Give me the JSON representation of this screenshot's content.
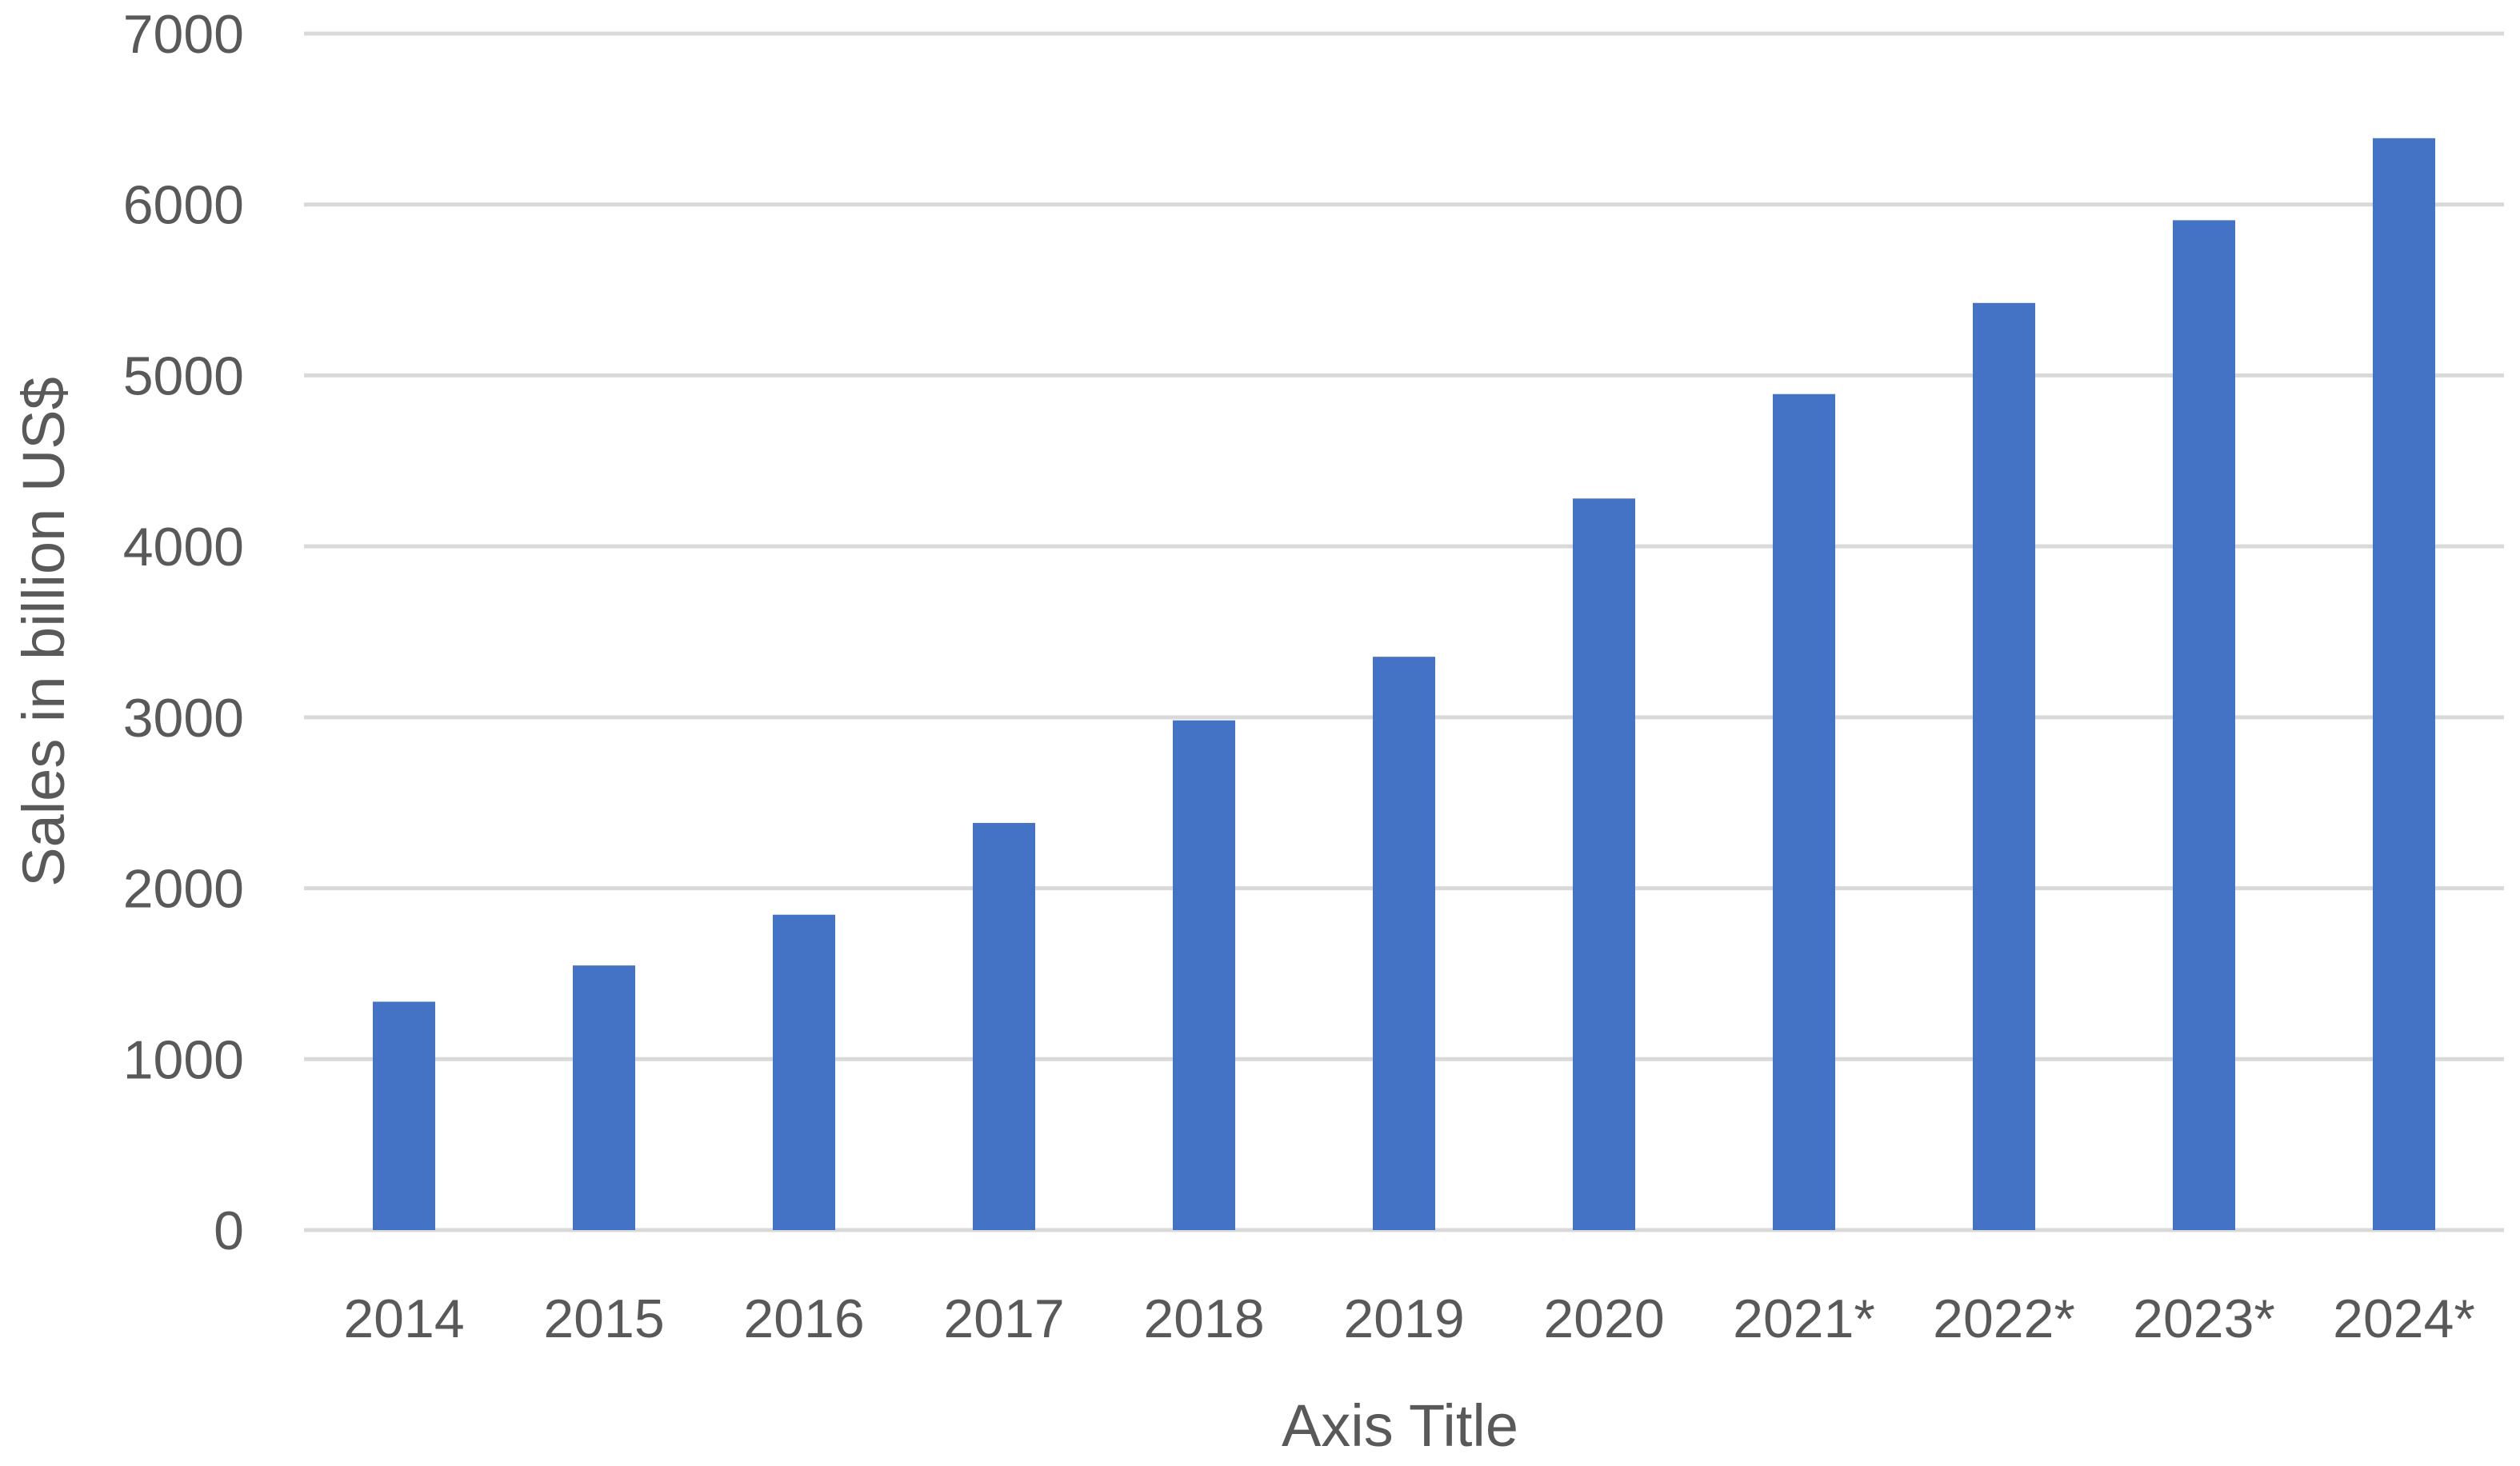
{
  "chart_data": {
    "type": "bar",
    "categories": [
      "2014",
      "2015",
      "2016",
      "2017",
      "2018",
      "2019",
      "2020",
      "2021*",
      "2022*",
      "2023*",
      "2024*"
    ],
    "series": [
      {
        "values": [
          1336,
          1548,
          1845,
          2382,
          2982,
          3354,
          4280,
          4891,
          5424,
          5908,
          6388
        ],
        "color": "#4472c4"
      }
    ],
    "title": "",
    "xlabel": "Axis Title",
    "ylabel": "Sales in billion US$",
    "ylim": [
      0,
      7000
    ],
    "yticks": [
      "0",
      "1000",
      "2000",
      "3000",
      "4000",
      "5000",
      "6000",
      "7000"
    ],
    "grid": true,
    "legend": "none"
  }
}
